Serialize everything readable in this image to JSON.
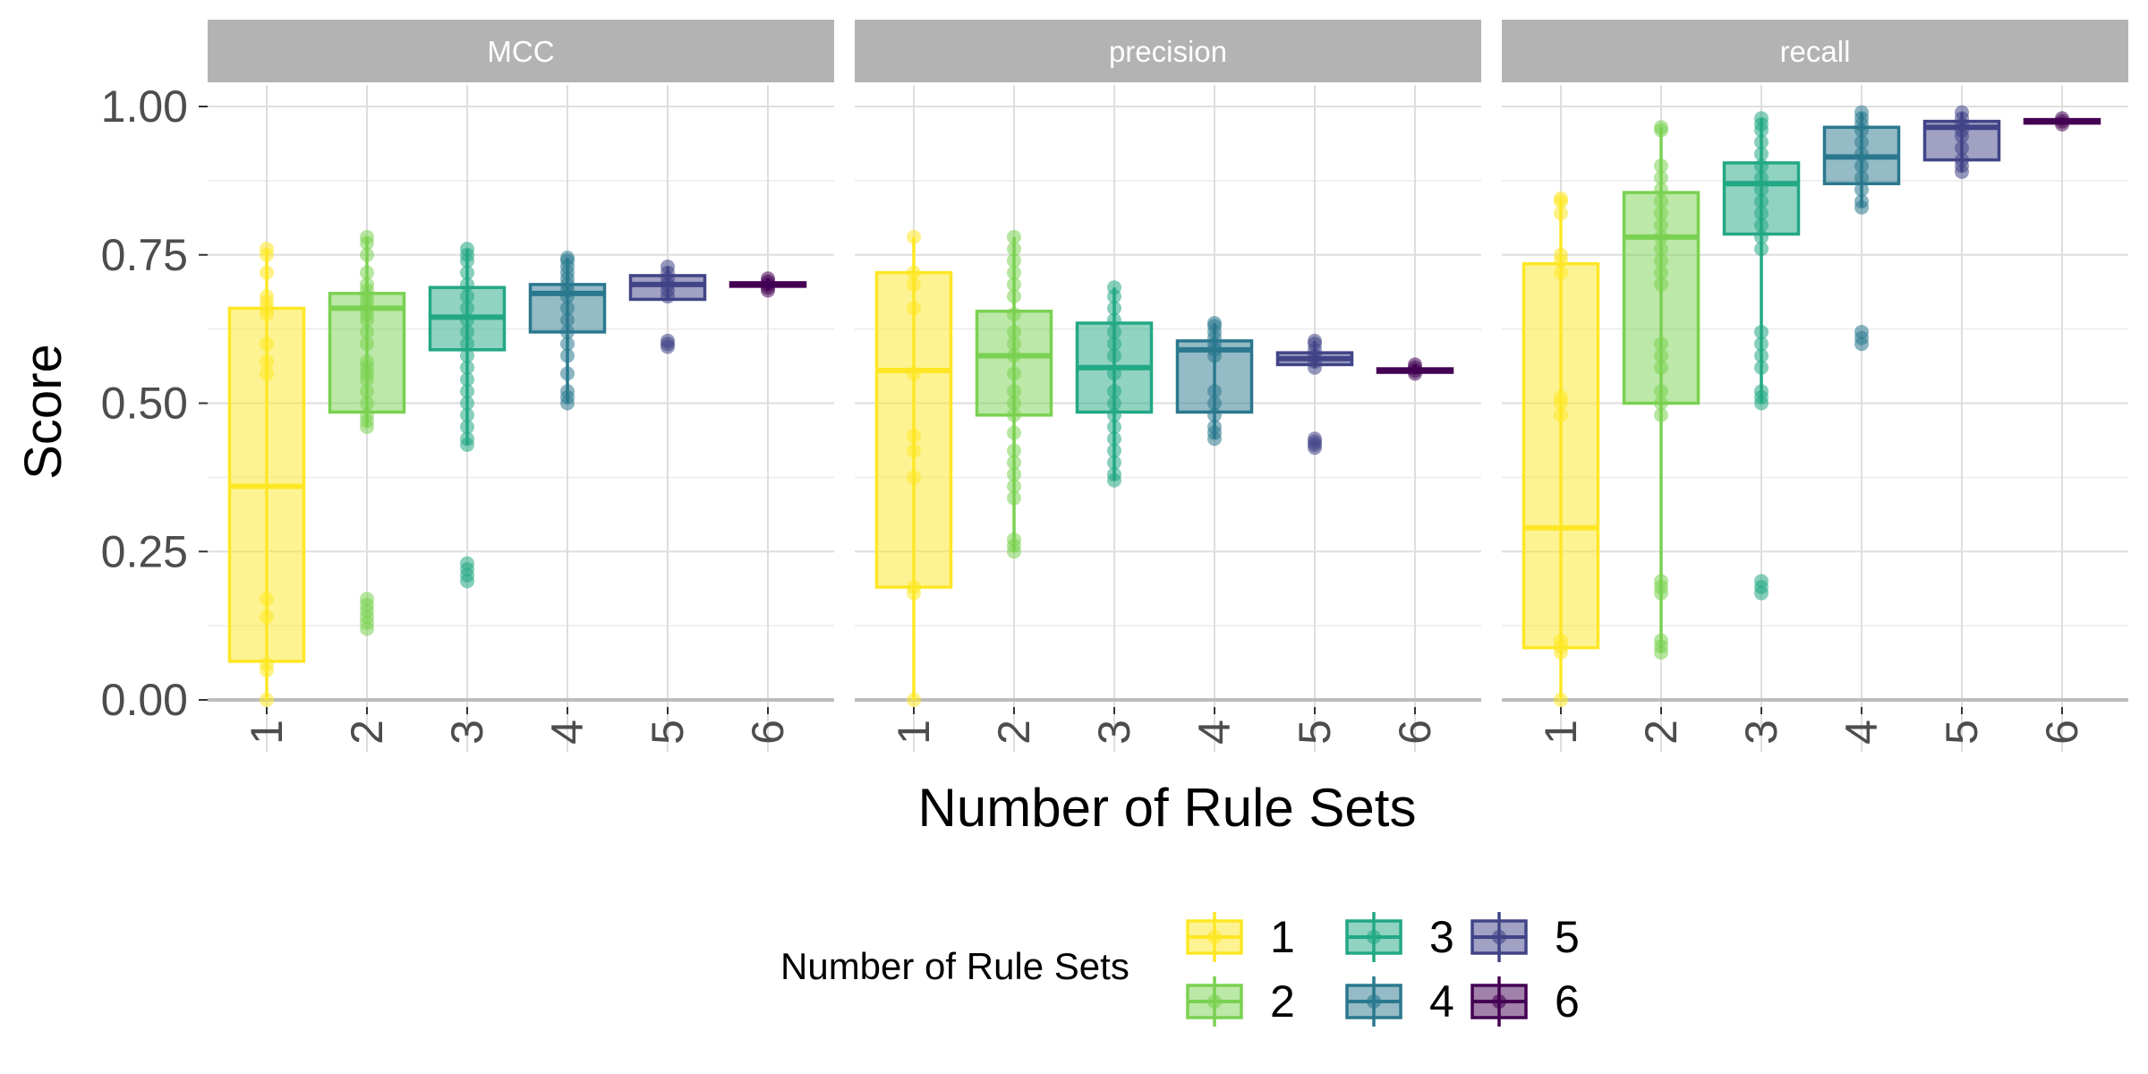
{
  "chart_data": {
    "type": "boxplot",
    "ylabel": "Score",
    "xlabel": "Number of Rule Sets",
    "ylim": [
      -0.04,
      1.12
    ],
    "yticks": [
      0.0,
      0.25,
      0.5,
      0.75,
      1.0
    ],
    "ytick_labels": [
      "0.00",
      "0.25",
      "0.50",
      "0.75",
      "1.00"
    ],
    "categories": [
      "1",
      "2",
      "3",
      "4",
      "5",
      "6"
    ],
    "colors": [
      "#FDE725",
      "#7AD151",
      "#22A884",
      "#2A788E",
      "#414487",
      "#440154"
    ],
    "grid": true,
    "legend": {
      "title": "Number of Rule Sets",
      "position": "bottom",
      "entries": [
        "1",
        "2",
        "3",
        "4",
        "5",
        "6"
      ]
    },
    "facets": [
      {
        "name": "MCC",
        "boxes": [
          {
            "q1": 0.065,
            "median": 0.36,
            "q3": 0.66,
            "whisker_low": 0.0,
            "whisker_high": 0.76,
            "points": [
              0.0,
              0.05,
              0.06,
              0.14,
              0.17,
              0.55,
              0.57,
              0.6,
              0.65,
              0.66,
              0.67,
              0.68,
              0.72,
              0.75,
              0.76
            ]
          },
          {
            "q1": 0.485,
            "median": 0.66,
            "q3": 0.685,
            "whisker_low": 0.46,
            "whisker_high": 0.78,
            "points": [
              0.12,
              0.13,
              0.14,
              0.15,
              0.16,
              0.17,
              0.46,
              0.47,
              0.48,
              0.5,
              0.52,
              0.54,
              0.55,
              0.56,
              0.57,
              0.6,
              0.62,
              0.64,
              0.65,
              0.66,
              0.67,
              0.68,
              0.69,
              0.7,
              0.72,
              0.75,
              0.77,
              0.78
            ]
          },
          {
            "q1": 0.59,
            "median": 0.645,
            "q3": 0.695,
            "whisker_low": 0.43,
            "whisker_high": 0.76,
            "points": [
              0.2,
              0.21,
              0.22,
              0.23,
              0.43,
              0.44,
              0.46,
              0.48,
              0.5,
              0.52,
              0.54,
              0.56,
              0.58,
              0.6,
              0.62,
              0.64,
              0.66,
              0.68,
              0.7,
              0.72,
              0.74,
              0.75,
              0.76
            ]
          },
          {
            "q1": 0.62,
            "median": 0.685,
            "q3": 0.7,
            "whisker_low": 0.5,
            "whisker_high": 0.745,
            "points": [
              0.5,
              0.51,
              0.52,
              0.55,
              0.58,
              0.6,
              0.62,
              0.64,
              0.66,
              0.68,
              0.69,
              0.7,
              0.71,
              0.72,
              0.73,
              0.74,
              0.745
            ]
          },
          {
            "q1": 0.675,
            "median": 0.7,
            "q3": 0.715,
            "whisker_low": 0.675,
            "whisker_high": 0.73,
            "points": [
              0.595,
              0.6,
              0.605,
              0.68,
              0.69,
              0.7,
              0.71,
              0.72,
              0.73
            ]
          },
          {
            "q1": 0.697,
            "median": 0.7,
            "q3": 0.703,
            "whisker_low": 0.69,
            "whisker_high": 0.71,
            "points": [
              0.69,
              0.695,
              0.7,
              0.705,
              0.71
            ]
          }
        ]
      },
      {
        "name": "precision",
        "boxes": [
          {
            "q1": 0.19,
            "median": 0.555,
            "q3": 0.72,
            "whisker_low": 0.0,
            "whisker_high": 0.78,
            "points": [
              0.0,
              0.18,
              0.19,
              0.375,
              0.42,
              0.445,
              0.55,
              0.66,
              0.7,
              0.72,
              0.78
            ]
          },
          {
            "q1": 0.48,
            "median": 0.58,
            "q3": 0.655,
            "whisker_low": 0.25,
            "whisker_high": 0.78,
            "points": [
              0.25,
              0.26,
              0.27,
              0.34,
              0.36,
              0.38,
              0.4,
              0.42,
              0.45,
              0.48,
              0.5,
              0.52,
              0.55,
              0.58,
              0.6,
              0.62,
              0.65,
              0.68,
              0.7,
              0.72,
              0.74,
              0.76,
              0.78
            ]
          },
          {
            "q1": 0.485,
            "median": 0.56,
            "q3": 0.635,
            "whisker_low": 0.37,
            "whisker_high": 0.695,
            "points": [
              0.37,
              0.38,
              0.4,
              0.42,
              0.44,
              0.46,
              0.48,
              0.5,
              0.52,
              0.55,
              0.58,
              0.6,
              0.62,
              0.64,
              0.66,
              0.68,
              0.695
            ]
          },
          {
            "q1": 0.485,
            "median": 0.59,
            "q3": 0.605,
            "whisker_low": 0.44,
            "whisker_high": 0.635,
            "points": [
              0.44,
              0.45,
              0.46,
              0.48,
              0.5,
              0.52,
              0.58,
              0.59,
              0.6,
              0.61,
              0.62,
              0.63,
              0.635
            ]
          },
          {
            "q1": 0.565,
            "median": 0.575,
            "q3": 0.585,
            "whisker_low": 0.56,
            "whisker_high": 0.605,
            "points": [
              0.425,
              0.43,
              0.435,
              0.44,
              0.56,
              0.57,
              0.58,
              0.59,
              0.6,
              0.605
            ]
          },
          {
            "q1": 0.552,
            "median": 0.555,
            "q3": 0.558,
            "whisker_low": 0.55,
            "whisker_high": 0.565,
            "points": [
              0.55,
              0.555,
              0.56,
              0.565
            ]
          }
        ]
      },
      {
        "name": "recall",
        "boxes": [
          {
            "q1": 0.088,
            "median": 0.29,
            "q3": 0.735,
            "whisker_low": 0.0,
            "whisker_high": 0.845,
            "points": [
              0.0,
              0.08,
              0.09,
              0.1,
              0.48,
              0.5,
              0.51,
              0.72,
              0.74,
              0.75,
              0.82,
              0.84,
              0.845
            ]
          },
          {
            "q1": 0.5,
            "median": 0.78,
            "q3": 0.855,
            "whisker_low": 0.08,
            "whisker_high": 0.965,
            "points": [
              0.08,
              0.09,
              0.1,
              0.18,
              0.19,
              0.2,
              0.48,
              0.5,
              0.52,
              0.56,
              0.58,
              0.6,
              0.7,
              0.72,
              0.74,
              0.76,
              0.78,
              0.8,
              0.82,
              0.84,
              0.86,
              0.88,
              0.9,
              0.96,
              0.965
            ]
          },
          {
            "q1": 0.785,
            "median": 0.87,
            "q3": 0.905,
            "whisker_low": 0.5,
            "whisker_high": 0.98,
            "points": [
              0.18,
              0.19,
              0.2,
              0.5,
              0.51,
              0.52,
              0.56,
              0.58,
              0.6,
              0.62,
              0.76,
              0.78,
              0.8,
              0.82,
              0.84,
              0.86,
              0.88,
              0.9,
              0.92,
              0.94,
              0.96,
              0.97,
              0.98
            ]
          },
          {
            "q1": 0.87,
            "median": 0.915,
            "q3": 0.965,
            "whisker_low": 0.83,
            "whisker_high": 0.99,
            "points": [
              0.6,
              0.61,
              0.62,
              0.83,
              0.84,
              0.86,
              0.88,
              0.9,
              0.92,
              0.94,
              0.96,
              0.97,
              0.98,
              0.99
            ]
          },
          {
            "q1": 0.91,
            "median": 0.965,
            "q3": 0.975,
            "whisker_low": 0.89,
            "whisker_high": 0.99,
            "points": [
              0.89,
              0.9,
              0.91,
              0.93,
              0.95,
              0.96,
              0.97,
              0.98,
              0.99
            ]
          },
          {
            "q1": 0.972,
            "median": 0.975,
            "q3": 0.978,
            "whisker_low": 0.97,
            "whisker_high": 0.98,
            "points": [
              0.97,
              0.975,
              0.98
            ]
          }
        ]
      }
    ]
  }
}
